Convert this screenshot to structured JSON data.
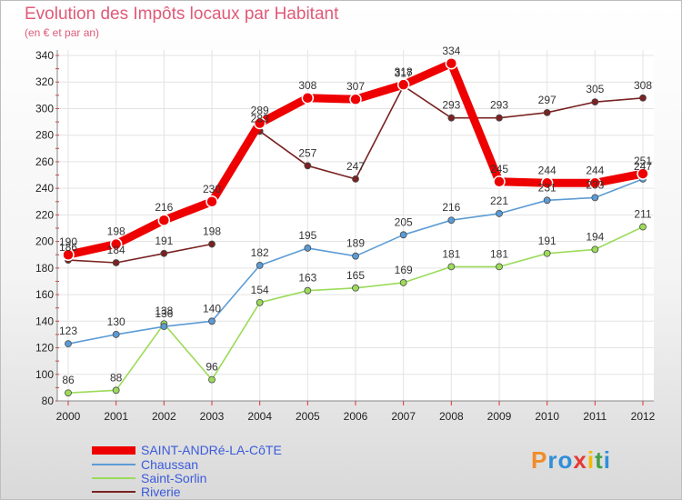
{
  "chart_data": {
    "type": "line",
    "title": "Evolution des Impôts locaux par Habitant",
    "subtitle": "(en € et par an)",
    "xlabel": "",
    "ylabel": "",
    "ylim": [
      80,
      340
    ],
    "yticks": [
      80,
      100,
      120,
      140,
      160,
      180,
      200,
      220,
      240,
      260,
      280,
      300,
      320,
      340
    ],
    "categories": [
      "2000",
      "2001",
      "2002",
      "2003",
      "2004",
      "2005",
      "2006",
      "2007",
      "2008",
      "2009",
      "2010",
      "2011",
      "2012"
    ],
    "series": [
      {
        "name": "SAINT-ANDRé-LA-CôTE",
        "color": "#ee0000",
        "values": [
          190,
          198,
          216,
          230,
          289,
          308,
          307,
          318,
          334,
          245,
          244,
          244,
          251
        ]
      },
      {
        "name": "Chaussan",
        "color": "#5b9bd5",
        "values": [
          123,
          130,
          136,
          140,
          182,
          195,
          189,
          205,
          216,
          221,
          231,
          233,
          247
        ]
      },
      {
        "name": "Saint-Sorlin",
        "color": "#9bdb5a",
        "values": [
          86,
          88,
          138,
          96,
          154,
          163,
          165,
          169,
          181,
          181,
          191,
          194,
          211
        ]
      },
      {
        "name": "Riverie",
        "color": "#7a2222",
        "values": [
          186,
          184,
          191,
          198,
          283,
          257,
          247,
          317,
          293,
          293,
          297,
          305,
          308
        ]
      }
    ],
    "gaps": {
      "Riverie": [
        3
      ]
    }
  },
  "logo": {
    "text": "Proxiti"
  }
}
